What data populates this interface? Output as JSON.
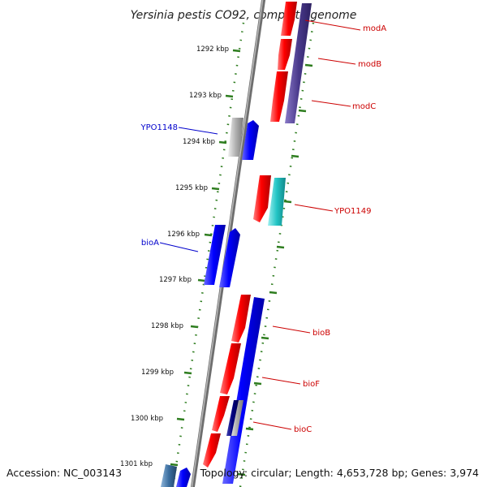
{
  "title": "Yersinia pestis CO92, complete genome",
  "footer": {
    "accession": "Accession: NC_003143",
    "summary": "Topology: circular; Length: 4,653,728 bp; Genes: 3,974"
  },
  "ticks": [
    {
      "label": "1292 kbp"
    },
    {
      "label": "1293 kbp"
    },
    {
      "label": "1294 kbp"
    },
    {
      "label": "1295 kbp"
    },
    {
      "label": "1296 kbp"
    },
    {
      "label": "1297 kbp"
    },
    {
      "label": "1298 kbp"
    },
    {
      "label": "1299 kbp"
    },
    {
      "label": "1300 kbp"
    },
    {
      "label": "1301 kbp"
    }
  ],
  "gene_labels": [
    {
      "text": "modA",
      "color": "#cc0000"
    },
    {
      "text": "modB",
      "color": "#cc0000"
    },
    {
      "text": "modC",
      "color": "#cc0000"
    },
    {
      "text": "YPO1148",
      "color": "#0000cc"
    },
    {
      "text": "YPO1149",
      "color": "#cc0000"
    },
    {
      "text": "bioA",
      "color": "#0000cc"
    },
    {
      "text": "bioB",
      "color": "#cc0000"
    },
    {
      "text": "bioF",
      "color": "#cc0000"
    },
    {
      "text": "bioC",
      "color": "#cc0000"
    }
  ],
  "colors": {
    "backbone": "#8c8c8c",
    "tick": "#2e7d1f",
    "forward_feature": "#ff0000",
    "reverse_feature": "#0000ff",
    "purple_feature": "#4a3a8c",
    "cyan_feature": "#22c5c5",
    "gray_feature": "#b0b0b0",
    "steel_feature": "#3b6ea0",
    "navy_feature": "#000080"
  }
}
